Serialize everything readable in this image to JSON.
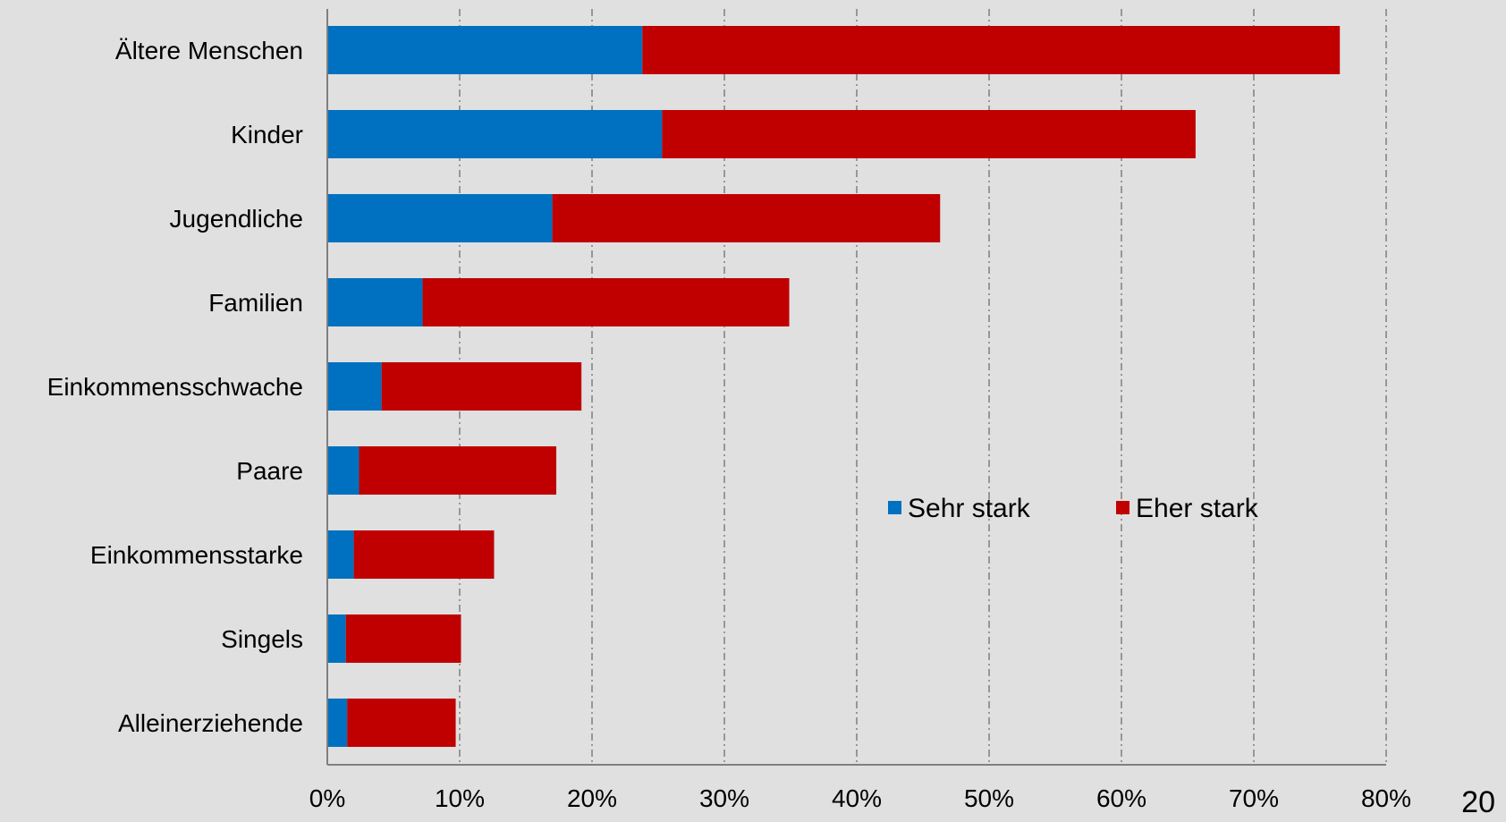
{
  "page_number": "20",
  "chart_data": {
    "type": "bar",
    "orientation": "horizontal",
    "stacked": true,
    "categories": [
      "Ältere Menschen",
      "Kinder",
      "Jugendliche",
      "Familien",
      "Einkommensschwache",
      "Paare",
      "Einkommensstarke",
      "Singels",
      "Alleinerziehende"
    ],
    "series": [
      {
        "name": "Sehr stark",
        "color": "#0070c0",
        "values": [
          23.8,
          25.3,
          17.0,
          7.2,
          4.1,
          2.4,
          2.0,
          1.4,
          1.5
        ]
      },
      {
        "name": "Eher stark",
        "color": "#c00000",
        "values": [
          52.7,
          40.3,
          29.3,
          27.7,
          15.1,
          14.9,
          10.6,
          8.7,
          8.2
        ]
      }
    ],
    "xlim": [
      0,
      80
    ],
    "xticks": [
      "0%",
      "10%",
      "20%",
      "30%",
      "40%",
      "50%",
      "60%",
      "70%",
      "80%"
    ],
    "grid": "vertical dashed",
    "legend_position": "inside, right of middle"
  }
}
